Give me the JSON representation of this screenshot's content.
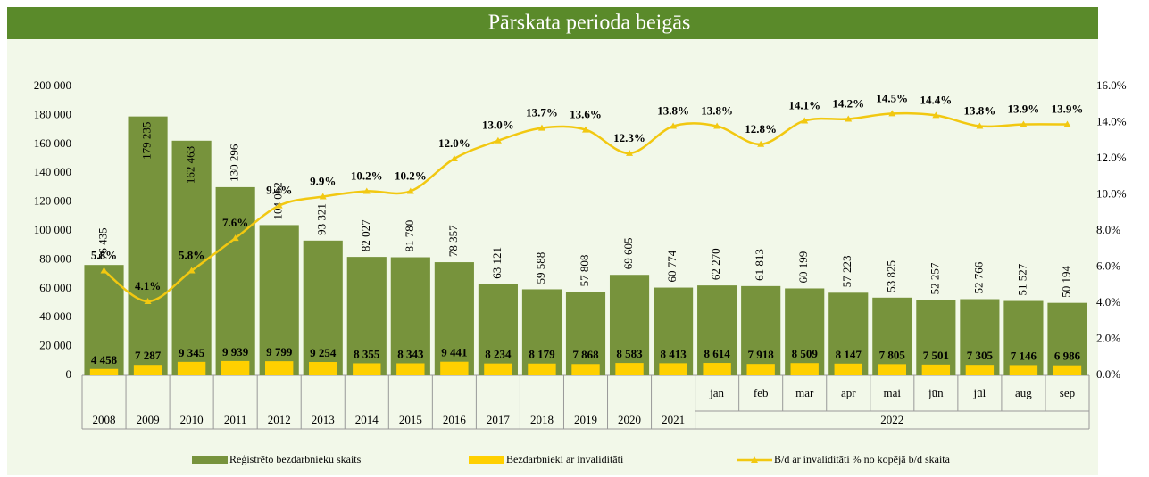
{
  "chart_data": {
    "type": "bar-line",
    "title": "Pārskata perioda beigās",
    "categories": [
      "2008",
      "2009",
      "2010",
      "2011",
      "2012",
      "2013",
      "2014",
      "2015",
      "2016",
      "2017",
      "2018",
      "2019",
      "2020",
      "2021",
      "jan",
      "feb",
      "mar",
      "apr",
      "mai",
      "jūn",
      "jūl",
      "aug",
      "sep"
    ],
    "category_groups": [
      {
        "label": "2022",
        "start": 14,
        "end": 22
      }
    ],
    "series": [
      {
        "name": "Reģistrēto bezdarbnieku skaits",
        "color": "#77933c",
        "type": "bar",
        "values": [
          76435,
          179235,
          162463,
          130296,
          104052,
          93321,
          82027,
          81780,
          78357,
          63121,
          59588,
          57808,
          69605,
          60774,
          62270,
          61813,
          60199,
          57223,
          53825,
          52257,
          52766,
          51527,
          50194
        ],
        "value_labels": [
          "76 435",
          "179 235",
          "162 463",
          "130 296",
          "104 052",
          "93 321",
          "82 027",
          "81 780",
          "78 357",
          "63 121",
          "59 588",
          "57 808",
          "69 605",
          "60 774",
          "62 270",
          "61 813",
          "60 199",
          "57 223",
          "53 825",
          "52 257",
          "52 766",
          "51 527",
          "50 194"
        ]
      },
      {
        "name": "Bezdarbnieki ar invaliditāti",
        "color": "#ffd000",
        "type": "bar",
        "values": [
          4458,
          7287,
          9345,
          9939,
          9799,
          9254,
          8355,
          8343,
          9441,
          8234,
          8179,
          7868,
          8583,
          8413,
          8614,
          7918,
          8509,
          8147,
          7805,
          7501,
          7305,
          7146,
          6986
        ],
        "value_labels": [
          "4 458",
          "7 287",
          "9 345",
          "9 939",
          "9 799",
          "9 254",
          "8 355",
          "8 343",
          "9 441",
          "8 234",
          "8 179",
          "7 868",
          "8 583",
          "8 413",
          "8 614",
          "7 918",
          "8 509",
          "8 147",
          "7 805",
          "7 501",
          "7 305",
          "7 146",
          "6 986"
        ]
      },
      {
        "name": "B/d ar invaliditāti % no kopējā b/d skaita",
        "color": "#f2c811",
        "type": "line",
        "axis": "y2",
        "values": [
          5.8,
          4.1,
          5.8,
          7.6,
          9.4,
          9.9,
          10.2,
          10.2,
          12.0,
          13.0,
          13.7,
          13.6,
          12.3,
          13.8,
          13.8,
          12.8,
          14.1,
          14.2,
          14.5,
          14.4,
          13.8,
          13.9,
          13.9
        ],
        "value_labels": [
          "5.8%",
          "4.1%",
          "5.8%",
          "7.6%",
          "9.4%",
          "9.9%",
          "10.2%",
          "10.2%",
          "12.0%",
          "13.0%",
          "13.7%",
          "13.6%",
          "12.3%",
          "13.8%",
          "13.8%",
          "12.8%",
          "14.1%",
          "14.2%",
          "14.5%",
          "14.4%",
          "13.8%",
          "13.9%",
          "13.9%"
        ]
      }
    ],
    "ylim": [
      0,
      200000
    ],
    "yticks": [
      0,
      {
        "value": 20000,
        "label": "20 000"
      },
      {
        "value": 40000,
        "label": "40 000"
      },
      {
        "value": 60000,
        "label": "60 000"
      },
      {
        "value": 80000,
        "label": "80 000"
      },
      {
        "value": 100000,
        "label": "100 000"
      },
      {
        "value": 120000,
        "label": "120 000"
      },
      {
        "value": 140000,
        "label": "140 000"
      },
      {
        "value": 160000,
        "label": "160 000"
      },
      {
        "value": 180000,
        "label": "180 000"
      },
      {
        "value": 200000,
        "label": "200 000"
      }
    ],
    "y2lim": [
      0,
      16
    ],
    "y2ticks": [
      {
        "value": 0,
        "label": "0.0%"
      },
      {
        "value": 2,
        "label": "2.0%"
      },
      {
        "value": 4,
        "label": "4.0%"
      },
      {
        "value": 6,
        "label": "6.0%"
      },
      {
        "value": 8,
        "label": "8.0%"
      },
      {
        "value": 10,
        "label": "10.0%"
      },
      {
        "value": 12,
        "label": "12.0%"
      },
      {
        "value": 14,
        "label": "14.0%"
      },
      {
        "value": 16,
        "label": "16.0%"
      }
    ],
    "legend": "bottom"
  }
}
